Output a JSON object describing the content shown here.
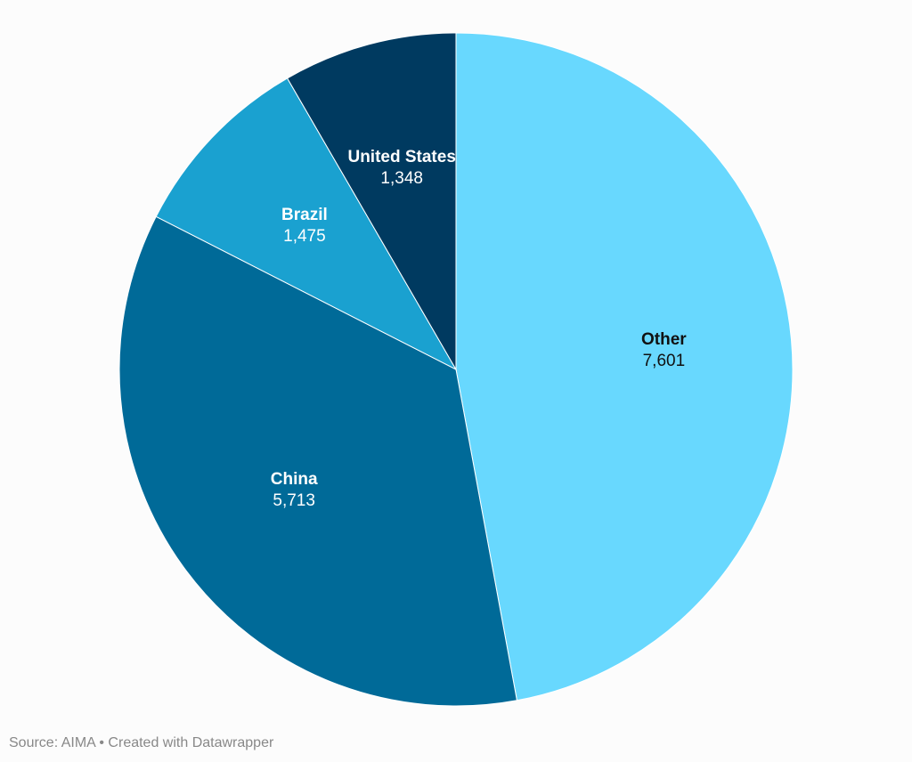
{
  "chart_data": {
    "type": "pie",
    "title": "",
    "categories": [
      "Other",
      "China",
      "Brazil",
      "United States"
    ],
    "values": [
      7601,
      5713,
      1475,
      1348
    ],
    "labels": [
      "7,601",
      "5,713",
      "1,475",
      "1,348"
    ],
    "colors": [
      "#68d8fe",
      "#006a98",
      "#1aa1d0",
      "#003a60"
    ],
    "label_colors": [
      "#111111",
      "#ffffff",
      "#ffffff",
      "#ffffff"
    ],
    "start_angle_deg": 0,
    "direction": "clockwise",
    "legend": "none"
  },
  "footer": {
    "text": "Source: AIMA • Created with Datawrapper"
  }
}
